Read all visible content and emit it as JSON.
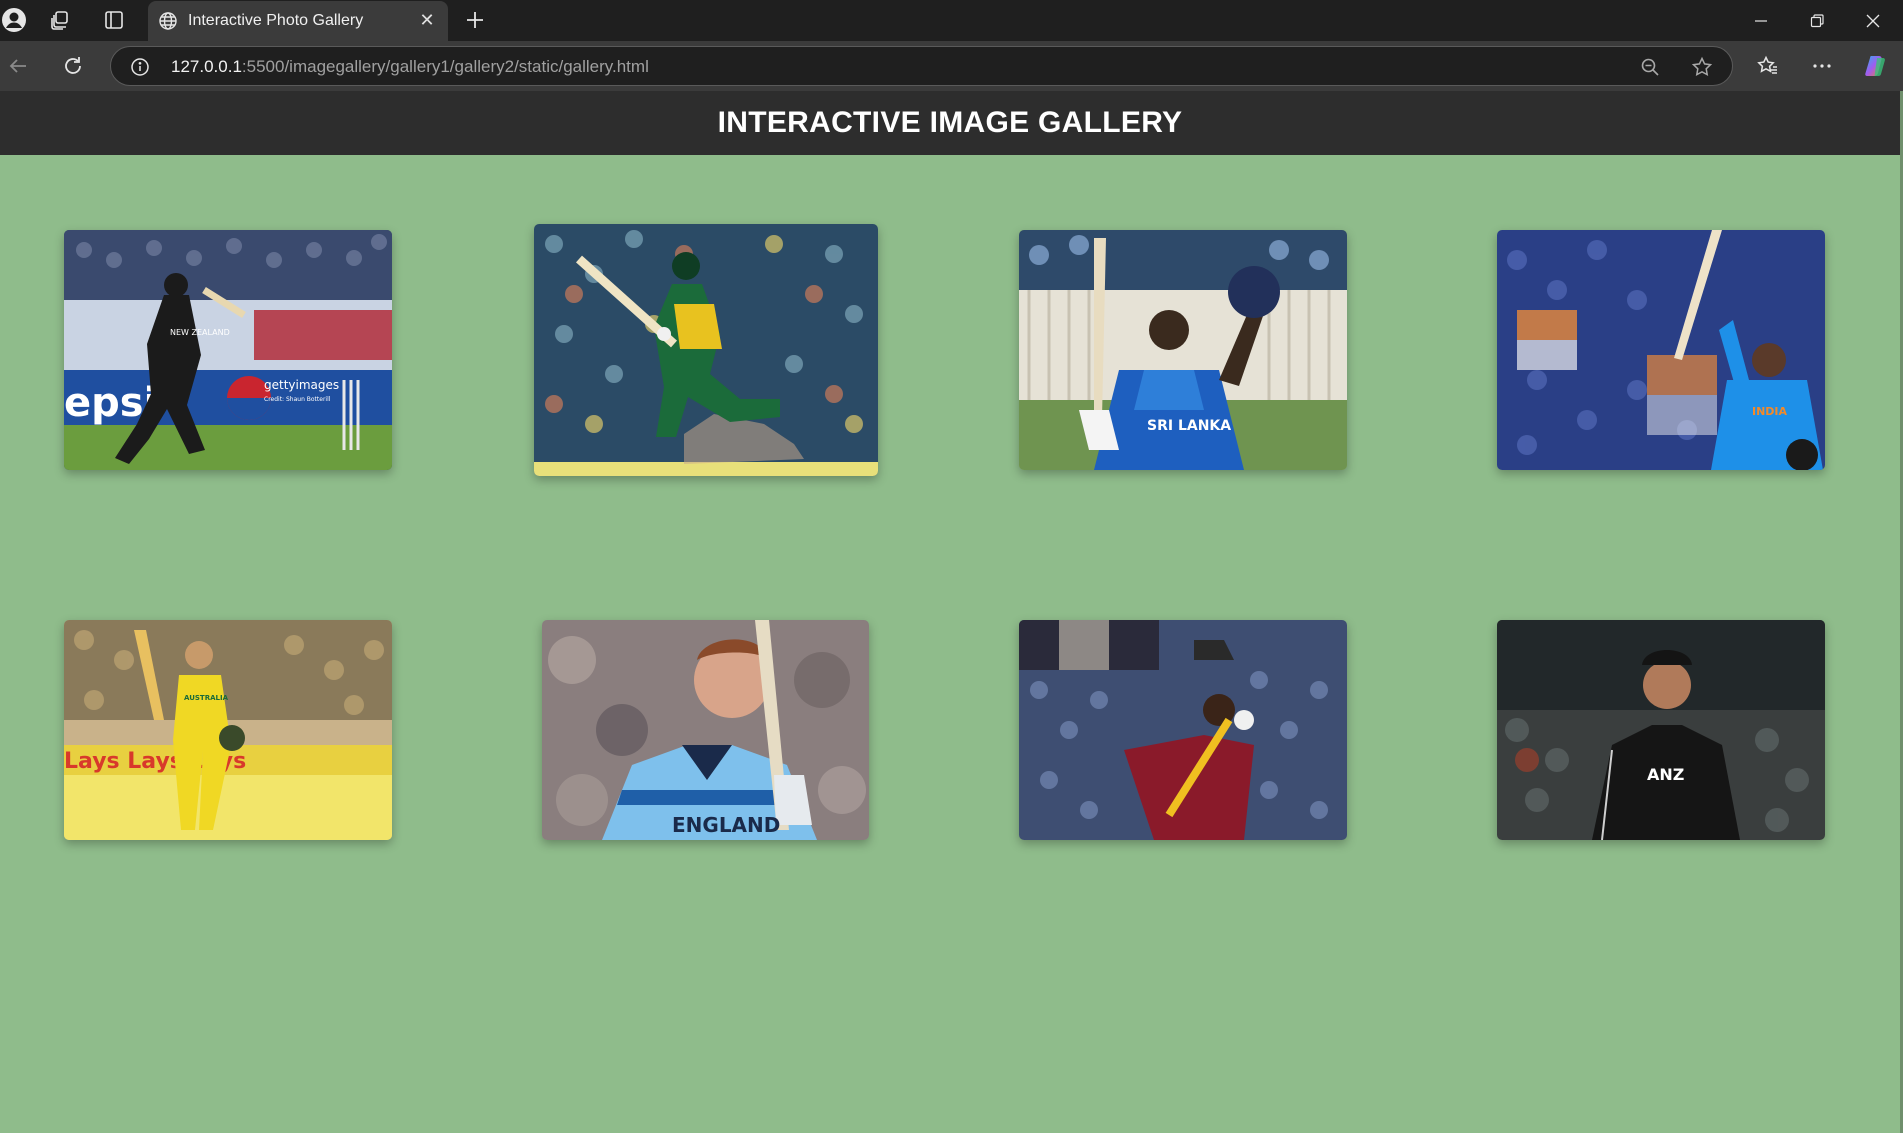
{
  "browser": {
    "tab_title": "Interactive Photo Gallery",
    "url_host": "127.0.0.1",
    "url_rest": ":5500/imagegallery/gallery1/gallery2/static/gallery.html"
  },
  "page": {
    "title": "INTERACTIVE IMAGE GALLERY"
  },
  "gallery": {
    "photos": [
      {
        "subject": "New Zealand batsman playing a shot",
        "jersey_text": "NEW ZEALAND",
        "board_text": "epsi",
        "watermark": "gettyimages",
        "credit": "Credit: Shaun Botterill"
      },
      {
        "subject": "South Africa batsman playing a sweep shot"
      },
      {
        "subject": "Sri Lanka batsman raising bat and helmet",
        "jersey_text": "SRI LANKA"
      },
      {
        "subject": "India batsman raising bat",
        "jersey_text": "INDIA"
      },
      {
        "subject": "Australia batsman raising bat",
        "jersey_text": "AUSTRALIA"
      },
      {
        "subject": "England player holding bat",
        "jersey_text": "ENGLAND"
      },
      {
        "subject": "West Indies batsman celebrating"
      },
      {
        "subject": "New Zealand player walking",
        "jersey_text": "ANZ"
      }
    ]
  }
}
